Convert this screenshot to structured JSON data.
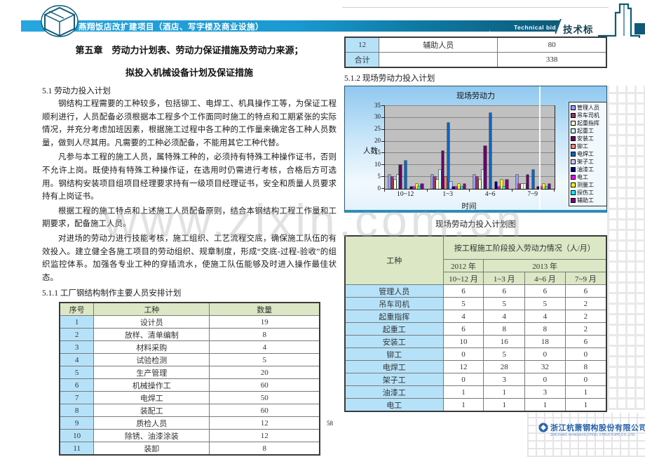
{
  "header": {
    "project_title": "燕翔饭店改扩建项目（酒店、写字楼及商业设施）",
    "technical_bid_en": "Technical bid",
    "technical_bid_cn": "技术标"
  },
  "left": {
    "chapter_title_line1": "第五章　劳动力计划表、劳动力保证措施及劳动力来源；",
    "chapter_title_line2": "拟投入机械设备计划及保证措施",
    "section_51": "5.1 劳动力投入计划",
    "paragraphs": [
      "钢结构工程需要的工种较多，包括铆工、电焊工、机具操作工等，为保证工程顺利进行，人员配备必须根据本工程多个工作面同时施工的特点和工期紧张的实际情况，并充分考虑加班因素，根据施工过程中各工种的工作量来确定各工种人员数量，做到人尽其用。凡需要的工种必须配备，不能用其它工种代替。",
      "凡参与本工程的施工人员，属特殊工种的，必须持有特殊工种操作证书，否则不允许上岗。既使持有特殊工种操作证，在选用时仍需进行考核，合格后方可选用。钢结构安装项目组项目经理要求持有一级项目经理证书，安全和质量人员要求持有上岗证书。",
      "根据工程的施工特点和上述施工人员配备原则，结合本钢结构工程工作量和工期要求，配备施工人员。",
      "对进场的劳动力进行技能考核，施工组织、工艺流程交底，确保施工队伍的有效投入。建立健全各施工项目的劳动组织、规章制度，形成“交底-过程-验收”的组织监控体系。加强各专业工种的穿插流水，使施工队伍能够及时进入操作最佳状态。"
    ],
    "section_511": "5.1.1 工厂钢结构制作主要人员安排计划",
    "table": {
      "headers": [
        "序号",
        "工种",
        "数量"
      ],
      "rows": [
        [
          "1",
          "设计员",
          "19"
        ],
        [
          "2",
          "放样、清单编制",
          "8"
        ],
        [
          "3",
          "材料采购",
          "4"
        ],
        [
          "4",
          "试验检测",
          "5"
        ],
        [
          "5",
          "生产管理",
          "20"
        ],
        [
          "6",
          "机械操作工",
          "60"
        ],
        [
          "7",
          "电焊工",
          "50"
        ],
        [
          "8",
          "装配工",
          "60"
        ],
        [
          "9",
          "质检人员",
          "12"
        ],
        [
          "10",
          "除锈、油漆涂装",
          "12"
        ],
        [
          "11",
          "装卸",
          "8"
        ]
      ]
    }
  },
  "right": {
    "table_top": {
      "rows": [
        [
          "12",
          "辅助人员",
          "80"
        ],
        [
          "合计",
          "",
          "338"
        ]
      ]
    },
    "section_512": "5.1.2 现场劳动力投入计划",
    "chart_caption": "现场劳动力投入计划图",
    "stage_table": {
      "worker_header": "工种",
      "span_header": "按工程施工阶段投入劳动力情况（人/月）",
      "year_2012": "2012 年",
      "year_2013": "2013 年",
      "periods": [
        "10~12 月",
        "1~3 月",
        "4~6 月",
        "7~9 月"
      ],
      "rows": [
        [
          "管理人员",
          "6",
          "6",
          "6",
          "6"
        ],
        [
          "吊车司机",
          "5",
          "5",
          "5",
          "2"
        ],
        [
          "起重指挥",
          "4",
          "4",
          "4",
          "2"
        ],
        [
          "起重工",
          "6",
          "8",
          "8",
          "2"
        ],
        [
          "安装工",
          "10",
          "16",
          "18",
          "6"
        ],
        [
          "铆工",
          "0",
          "5",
          "0",
          "0"
        ],
        [
          "电焊工",
          "12",
          "28",
          "32",
          "8"
        ],
        [
          "架子工",
          "0",
          "3",
          "0",
          "0"
        ],
        [
          "油漆工",
          "1",
          "1",
          "3",
          "1"
        ],
        [
          "电工",
          "1",
          "1",
          "1",
          "1"
        ]
      ]
    }
  },
  "chart_data": {
    "type": "bar",
    "title": "现场劳动力",
    "xlabel": "时间",
    "ylabel": "人数",
    "categories": [
      "10~12",
      "1~3",
      "4~6",
      "7~9"
    ],
    "ylim": [
      0,
      35
    ],
    "ytick_step": 5,
    "grid": true,
    "legend_position": "right",
    "series": [
      {
        "name": "管理人员",
        "color": "#9999FF",
        "values": [
          6,
          6,
          6,
          6
        ]
      },
      {
        "name": "吊车司机",
        "color": "#993366",
        "values": [
          5,
          5,
          5,
          2
        ]
      },
      {
        "name": "起重指挥",
        "color": "#FFFFCC",
        "values": [
          4,
          4,
          4,
          2
        ]
      },
      {
        "name": "起重工",
        "color": "#CCFFFF",
        "values": [
          6,
          8,
          8,
          2
        ]
      },
      {
        "name": "安装工",
        "color": "#660066",
        "values": [
          10,
          16,
          18,
          6
        ]
      },
      {
        "name": "铆工",
        "color": "#FF8080",
        "values": [
          0,
          5,
          0,
          0
        ]
      },
      {
        "name": "电焊工",
        "color": "#0066CC",
        "values": [
          12,
          28,
          32,
          8
        ]
      },
      {
        "name": "架子工",
        "color": "#CCCCFF",
        "values": [
          0,
          3,
          0,
          0
        ]
      },
      {
        "name": "油漆工",
        "color": "#000080",
        "values": [
          1,
          1,
          3,
          1
        ]
      },
      {
        "name": "电工",
        "color": "#FF00FF",
        "values": [
          1,
          1,
          1,
          1
        ]
      },
      {
        "name": "测量工",
        "color": "#FFFF00",
        "values": [
          2,
          2,
          4,
          2
        ]
      },
      {
        "name": "探伤工",
        "color": "#00FFFF",
        "values": [
          1,
          1,
          1,
          1
        ]
      },
      {
        "name": "辅助工",
        "color": "#800080",
        "values": [
          2,
          2,
          4,
          2
        ]
      }
    ]
  },
  "footer": {
    "page_number": "58",
    "company_cn": "浙江杭萧钢构股份有限公司",
    "company_en": "ZHEJIANG HANGXIAO STEEL STRUCTURE CO.,LTD."
  },
  "watermark": {
    "text": "www.zixin.com.cn"
  }
}
